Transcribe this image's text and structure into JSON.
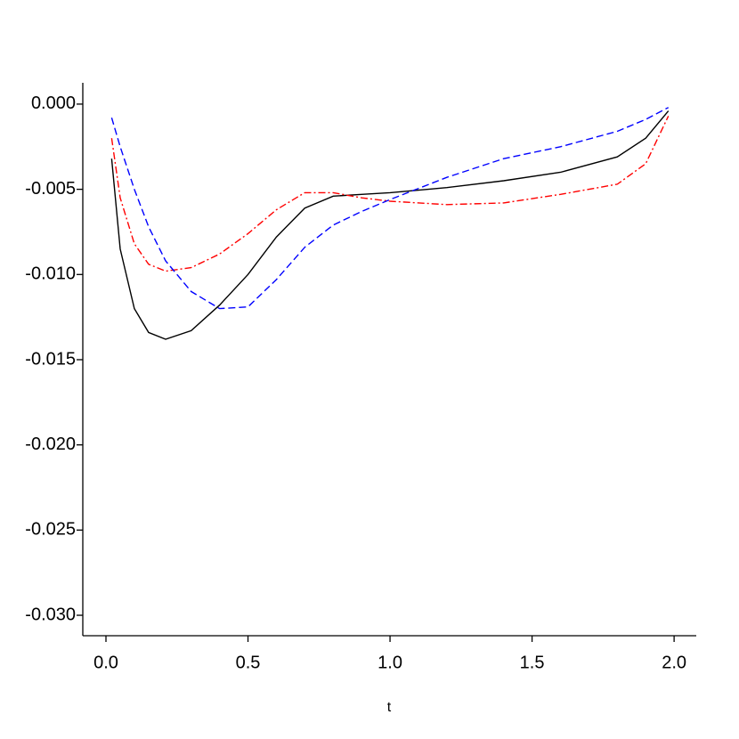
{
  "chart_data": {
    "type": "line",
    "xlabel": "t",
    "x": [
      0.02,
      0.05,
      0.1,
      0.15,
      0.21,
      0.3,
      0.4,
      0.5,
      0.6,
      0.7,
      0.8,
      0.9,
      1.0,
      1.2,
      1.4,
      1.6,
      1.8,
      1.9,
      1.98
    ],
    "series": [
      {
        "color": "#000000",
        "dash": "solid",
        "values": [
          -0.0032,
          -0.0085,
          -0.012,
          -0.0134,
          -0.0138,
          -0.0133,
          -0.0118,
          -0.01,
          -0.0078,
          -0.0061,
          -0.0054,
          -0.0053,
          -0.0052,
          -0.0049,
          -0.0045,
          -0.004,
          -0.0031,
          -0.002,
          -0.0004
        ]
      },
      {
        "color": "#ff0000",
        "dash": "dashdot",
        "values": [
          -0.002,
          -0.0055,
          -0.0082,
          -0.0094,
          -0.0098,
          -0.0096,
          -0.0088,
          -0.0076,
          -0.0062,
          -0.0052,
          -0.0052,
          -0.0055,
          -0.0057,
          -0.0059,
          -0.0058,
          -0.0053,
          -0.0047,
          -0.0035,
          -0.0007
        ]
      },
      {
        "color": "#0000ff",
        "dash": "dashed",
        "values": [
          -0.0008,
          -0.0025,
          -0.005,
          -0.0072,
          -0.0092,
          -0.011,
          -0.012,
          -0.0119,
          -0.0103,
          -0.0084,
          -0.0071,
          -0.0063,
          -0.0056,
          -0.0043,
          -0.0032,
          -0.0025,
          -0.0016,
          -0.0009,
          -0.0002
        ]
      }
    ],
    "xlim": [
      -0.0815,
      2.078
    ],
    "ylim": [
      -0.0312,
      0.00125
    ],
    "xticks": [
      {
        "value": 0,
        "label": "0.0"
      },
      {
        "value": 0.5,
        "label": "0.5"
      },
      {
        "value": 1,
        "label": "1.0"
      },
      {
        "value": 1.5,
        "label": "1.5"
      },
      {
        "value": 2,
        "label": "2.0"
      }
    ],
    "yticks": [
      {
        "value": 0,
        "label": "0.000"
      },
      {
        "value": -0.005,
        "label": "-0.005"
      },
      {
        "value": -0.01,
        "label": "-0.010"
      },
      {
        "value": -0.015,
        "label": "-0.015"
      },
      {
        "value": -0.02,
        "label": "-0.020"
      },
      {
        "value": -0.025,
        "label": "-0.025"
      },
      {
        "value": -0.03,
        "label": "-0.030"
      }
    ],
    "grid": false
  }
}
